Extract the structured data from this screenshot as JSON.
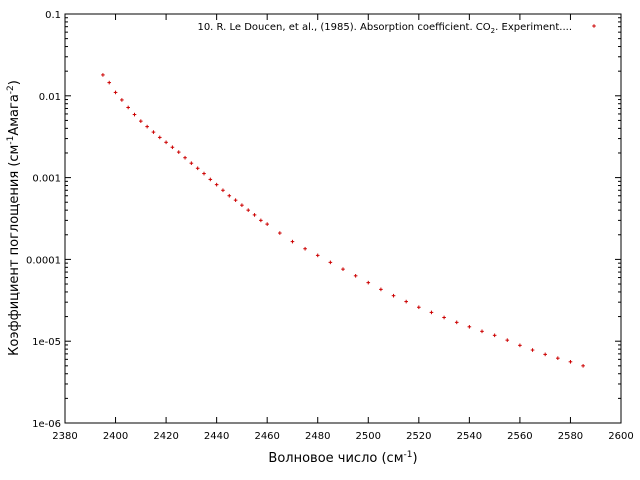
{
  "chart_data": {
    "type": "scatter",
    "xlabel": "Волновое число (см",
    "xlabel_sup": "-1",
    "xlabel_end": ")",
    "ylabel_parts": [
      "Коэффициент поглощения (см",
      "-1",
      "Амага",
      "-2",
      ")"
    ],
    "xlim": [
      2380,
      2600
    ],
    "ylim": [
      1e-06,
      0.1
    ],
    "yscale": "log",
    "grid": false,
    "legend_position": "top-right",
    "x_ticks": [
      2380,
      2400,
      2420,
      2440,
      2460,
      2480,
      2500,
      2520,
      2540,
      2560,
      2580,
      2600
    ],
    "x_tick_labels": [
      "2380",
      "2400",
      "2420",
      "2440",
      "2460",
      "2480",
      "2500",
      "2520",
      "2540",
      "2560",
      "2580",
      "2600"
    ],
    "y_ticks": [
      1e-06,
      1e-05,
      0.0001,
      0.001,
      0.01,
      0.1
    ],
    "y_tick_labels": [
      "1e-06",
      "1e-05",
      "0.0001",
      "0.001",
      "0.01",
      "0.1"
    ],
    "series": [
      {
        "name_parts": [
          "10. R. Le Doucen, et al., (1985). Absorption coefficient. CO",
          "2",
          ". Experiment...."
        ],
        "color": "#cc0000",
        "x": [
          2395,
          2397.5,
          2400,
          2402.5,
          2405,
          2407.5,
          2410,
          2412.5,
          2415,
          2417.5,
          2420,
          2422.5,
          2425,
          2427.5,
          2430,
          2432.5,
          2435,
          2437.5,
          2440,
          2442.5,
          2445,
          2447.5,
          2450,
          2452.5,
          2455,
          2457.5,
          2460,
          2465,
          2470,
          2475,
          2480,
          2485,
          2490,
          2495,
          2500,
          2505,
          2510,
          2515,
          2520,
          2525,
          2530,
          2535,
          2540,
          2545,
          2550,
          2555,
          2560,
          2565,
          2570,
          2575,
          2580,
          2585
        ],
        "y": [
          0.018,
          0.0145,
          0.011,
          0.0089,
          0.0072,
          0.0059,
          0.0049,
          0.0042,
          0.0036,
          0.0031,
          0.0027,
          0.00235,
          0.00205,
          0.00175,
          0.0015,
          0.0013,
          0.00112,
          0.00095,
          0.00082,
          0.0007,
          0.0006,
          0.00053,
          0.00046,
          0.0004,
          0.00035,
          0.0003,
          0.00027,
          0.00021,
          0.000165,
          0.000135,
          0.000112,
          9.2e-05,
          7.6e-05,
          6.3e-05,
          5.2e-05,
          4.3e-05,
          3.6e-05,
          3.05e-05,
          2.6e-05,
          2.25e-05,
          1.95e-05,
          1.7e-05,
          1.5e-05,
          1.32e-05,
          1.18e-05,
          1.03e-05,
          8.9e-06,
          7.8e-06,
          6.9e-06,
          6.2e-06,
          5.6e-06,
          5e-06
        ]
      }
    ]
  }
}
